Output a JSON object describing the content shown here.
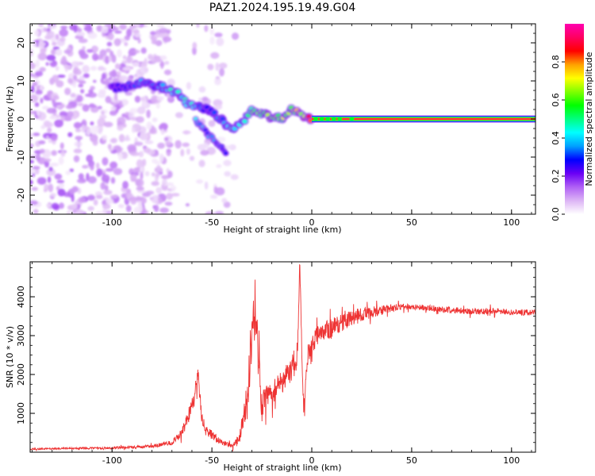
{
  "title": "PAZ1.2024.195.19.49.G04",
  "chart_data": [
    {
      "type": "heatmap",
      "title": "",
      "xlabel": "Height of straight line (km)",
      "ylabel": "Frequency (Hz)",
      "xlim": [
        -141,
        112
      ],
      "ylim": [
        -25,
        25
      ],
      "xticks": [
        -100,
        -50,
        0,
        50,
        100
      ],
      "xtick_labels": [
        "-100",
        "-50",
        "0",
        "50",
        "100"
      ],
      "yticks": [
        -20,
        -10,
        0,
        10,
        20
      ],
      "ytick_labels": [
        "-20",
        "-10",
        "0",
        "10",
        "20"
      ],
      "grid": false,
      "colorbar": {
        "label": "Normalized spectral amplitude",
        "range": [
          0,
          1
        ],
        "ticks": [
          0.0,
          0.2,
          0.4,
          0.6,
          0.8
        ],
        "tick_labels": [
          "0.0",
          "0.2",
          "0.4",
          "0.6",
          "0.8"
        ],
        "colormap": "gist_rainbow_r",
        "stops": [
          "#ffffff",
          "#dcb4f5",
          "#b060f5",
          "#6a00f5",
          "#0000ff",
          "#00a0ff",
          "#00ffff",
          "#00ff80",
          "#00ff00",
          "#80ff00",
          "#ffff00",
          "#ffa000",
          "#ff0000",
          "#ff0060",
          "#ff00b0"
        ]
      },
      "ridge": {
        "name": "dominant frequency track",
        "points": [
          {
            "x": -100,
            "y": 8.5,
            "amp": 0.22
          },
          {
            "x": -95,
            "y": 8.0,
            "amp": 0.26
          },
          {
            "x": -90,
            "y": 9.0,
            "amp": 0.3
          },
          {
            "x": -85,
            "y": 9.8,
            "amp": 0.34
          },
          {
            "x": -80,
            "y": 9.0,
            "amp": 0.32
          },
          {
            "x": -76,
            "y": 8.5,
            "amp": 0.36
          },
          {
            "x": -71,
            "y": 8.0,
            "amp": 0.42
          },
          {
            "x": -67,
            "y": 6.5,
            "amp": 0.4
          },
          {
            "x": -63,
            "y": 4.0,
            "amp": 0.44
          },
          {
            "x": -60,
            "y": 3.5,
            "amp": 0.4
          },
          {
            "x": -55,
            "y": 3.0,
            "amp": 0.3
          },
          {
            "x": -50,
            "y": 2.0,
            "amp": 0.26
          },
          {
            "x": -40,
            "y": -3.0,
            "amp": 0.44
          },
          {
            "x": -35,
            "y": -1.0,
            "amp": 0.38
          },
          {
            "x": -30,
            "y": 2.0,
            "amp": 0.55
          },
          {
            "x": -25,
            "y": 1.5,
            "amp": 0.6
          },
          {
            "x": -20,
            "y": 0.0,
            "amp": 0.66
          },
          {
            "x": -15,
            "y": 0.3,
            "amp": 0.62
          },
          {
            "x": -10,
            "y": 2.5,
            "amp": 0.62
          },
          {
            "x": -5,
            "y": 1.0,
            "amp": 0.72
          },
          {
            "x": 0,
            "y": 0.0,
            "amp": 0.85
          },
          {
            "x": 20,
            "y": 0.0,
            "amp": 0.92
          },
          {
            "x": 60,
            "y": 0.0,
            "amp": 0.95
          },
          {
            "x": 112,
            "y": 0.0,
            "amp": 0.95
          }
        ]
      },
      "branch": {
        "name": "descending branch",
        "points": [
          {
            "x": -58,
            "y": 0.0,
            "amp": 0.38
          },
          {
            "x": -54,
            "y": -3.0,
            "amp": 0.34
          },
          {
            "x": -50,
            "y": -5.0,
            "amp": 0.34
          },
          {
            "x": -46,
            "y": -7.0,
            "amp": 0.32
          },
          {
            "x": -43,
            "y": -9.0,
            "amp": 0.26
          }
        ]
      },
      "noise_region": {
        "x_from": -141,
        "x_to": -38,
        "amp_max": 0.15
      }
    },
    {
      "type": "line",
      "title": "",
      "xlabel": "Height of straight line (km)",
      "ylabel": "SNR (10 * v/v)",
      "xlim": [
        -141,
        112
      ],
      "ylim": [
        0,
        4900
      ],
      "xticks": [
        -100,
        -50,
        0,
        50,
        100
      ],
      "xtick_labels": [
        "-100",
        "-50",
        "0",
        "50",
        "100"
      ],
      "yticks": [
        1000,
        2000,
        3000,
        4000
      ],
      "ytick_labels": [
        "1000",
        "2000",
        "3000",
        "4000"
      ],
      "grid": false,
      "color": "#ee3333",
      "series": [
        {
          "x": [
            -141,
            -120,
            -100,
            -80,
            -70,
            -65,
            -62,
            -59,
            -57,
            -55,
            -52,
            -50,
            -45,
            -40,
            -36,
            -34,
            -32,
            -30,
            -28,
            -26,
            -25,
            -24,
            -22,
            -20,
            -17,
            -15,
            -12,
            -10,
            -8,
            -7,
            -6,
            -5,
            -4,
            -3,
            -2,
            0,
            3,
            5,
            10,
            15,
            20,
            25,
            30,
            35,
            40,
            50,
            60,
            70,
            80,
            90,
            100,
            112
          ],
          "y": [
            80,
            100,
            110,
            150,
            250,
            500,
            900,
            1400,
            1950,
            850,
            500,
            450,
            250,
            150,
            400,
            900,
            1500,
            2900,
            3300,
            2000,
            1150,
            1300,
            1500,
            1500,
            1700,
            1800,
            2000,
            2100,
            2300,
            2700,
            4900,
            2500,
            1000,
            2000,
            2500,
            2800,
            3000,
            3100,
            3200,
            3350,
            3450,
            3550,
            3600,
            3650,
            3720,
            3750,
            3700,
            3660,
            3620,
            3640,
            3600,
            3600
          ],
          "noise_amplitude": [
            20,
            25,
            30,
            40,
            60,
            120,
            200,
            250,
            200,
            150,
            150,
            120,
            80,
            60,
            150,
            300,
            600,
            600,
            600,
            500,
            400,
            400,
            300,
            300,
            300,
            300,
            300,
            300,
            300,
            300,
            200,
            200,
            200,
            250,
            250,
            250,
            250,
            250,
            250,
            220,
            200,
            180,
            150,
            120,
            100,
            80,
            80,
            80,
            80,
            80,
            80,
            80
          ]
        }
      ]
    }
  ]
}
